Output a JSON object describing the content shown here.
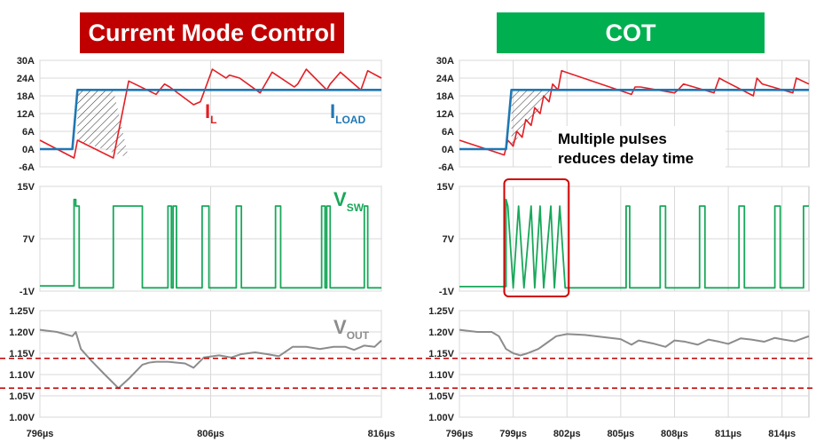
{
  "colors": {
    "left_title_bg": "#c00000",
    "right_title_bg": "#00b050",
    "il": "#e31e24",
    "iload": "#1f77b4",
    "vsw": "#18a85a",
    "vout": "#8c8c8c",
    "limit_line": "#c00000",
    "highlight_box": "#d00000",
    "grid": "#d9d9d9",
    "hatch": "#333333"
  },
  "panels": {
    "left": {
      "title": "Current Mode Control"
    },
    "right": {
      "title": "COT",
      "annotation_line1": "Multiple pulses",
      "annotation_line2": "reduces delay time"
    }
  },
  "labels": {
    "il_main": "I",
    "il_sub": "L",
    "iload_main": "I",
    "iload_sub": "LOAD",
    "vsw_main": "V",
    "vsw_sub": "SW",
    "vout_main": "V",
    "vout_sub": "OUT"
  },
  "chart_data": [
    {
      "type": "line",
      "panel": "left",
      "title": "Current Mode Control",
      "xlim": [
        796,
        816
      ],
      "x_ticks": [
        "796µs",
        "806µs",
        "816µs"
      ],
      "x_tick_values": [
        796,
        806,
        816
      ],
      "subplots": [
        {
          "name": "current",
          "ylim": [
            -6,
            30
          ],
          "y_ticks": [
            "30A",
            "24A",
            "18A",
            "12A",
            "6A",
            "0A",
            "-6A"
          ],
          "y_tick_values": [
            30,
            24,
            18,
            12,
            6,
            0,
            -6
          ],
          "series": [
            {
              "name": "IL",
              "x": [
                796,
                798,
                798.2,
                800.3,
                801.2,
                802.8,
                803.3,
                803.6,
                805.0,
                805.4,
                806.1,
                806.9,
                807.1,
                807.7,
                808.9,
                809.1,
                809.6,
                810.9,
                811.1,
                811.6,
                812.8,
                813.0,
                813.6,
                814.8,
                815.2,
                816
              ],
              "y": [
                3,
                -3,
                3,
                -3,
                23,
                18.5,
                22,
                21,
                15,
                16,
                27,
                24,
                25,
                24,
                19,
                21,
                26,
                21,
                22,
                27,
                20,
                22,
                26,
                20,
                26.5,
                24
              ]
            },
            {
              "name": "ILOAD",
              "x": [
                796,
                797.9,
                798.2,
                816
              ],
              "y": [
                0,
                0,
                20,
                20
              ]
            }
          ],
          "hatched_region": {
            "x": [
              798.2,
              800.3,
              801.2,
              798.2
            ],
            "y": [
              20,
              20,
              -3,
              3
            ]
          }
        },
        {
          "name": "vsw",
          "ylim": [
            -1,
            15
          ],
          "y_ticks": [
            "15V",
            "7V",
            "-1V"
          ],
          "y_tick_values": [
            15,
            7,
            -1
          ],
          "series": [
            {
              "name": "VSW",
              "x": [
                796,
                798.0,
                798.0,
                798.1,
                798.1,
                798.3,
                798.3,
                800.3,
                800.3,
                802.0,
                802.0,
                803.5,
                803.5,
                803.7,
                803.7,
                803.8,
                803.8,
                804.0,
                804.0,
                805.5,
                805.5,
                805.9,
                805.9,
                807.5,
                807.5,
                807.8,
                807.8,
                809.8,
                809.8,
                810.1,
                810.1,
                812.5,
                812.5,
                812.7,
                812.7,
                812.8,
                812.8,
                813.0,
                813.0,
                815.0,
                815.0,
                815.2,
                815.2,
                816
              ],
              "y": [
                -0.2,
                -0.2,
                13,
                13,
                12,
                12,
                -0.5,
                -0.5,
                12,
                12,
                -0.5,
                -0.5,
                12,
                12,
                -0.5,
                -0.5,
                12,
                12,
                -0.5,
                -0.5,
                12,
                12,
                -0.5,
                -0.5,
                12,
                12,
                -0.5,
                -0.5,
                12,
                12,
                -0.5,
                -0.5,
                12,
                12,
                -0.5,
                -0.5,
                12,
                12,
                -0.5,
                -0.5,
                12,
                12,
                -0.5,
                -0.5
              ]
            }
          ]
        },
        {
          "name": "vout",
          "ylim": [
            1.0,
            1.25
          ],
          "y_ticks": [
            "1.25V",
            "1.20V",
            "1.15V",
            "1.10V",
            "1.05V",
            "1.00V"
          ],
          "y_tick_values": [
            1.25,
            1.2,
            1.15,
            1.1,
            1.05,
            1.0
          ],
          "series": [
            {
              "name": "VOUT",
              "x": [
                796,
                797,
                797.9,
                798.1,
                798.4,
                799,
                799.8,
                800.6,
                801.2,
                802,
                802.4,
                802.8,
                803.5,
                804.5,
                805,
                805.6,
                806.5,
                807.2,
                807.8,
                808.6,
                809.3,
                810,
                810.8,
                811.6,
                812.4,
                813.2,
                813.9,
                814.4,
                815,
                815.6,
                816
              ],
              "y": [
                1.205,
                1.2,
                1.19,
                1.2,
                1.16,
                1.133,
                1.1,
                1.068,
                1.09,
                1.123,
                1.128,
                1.13,
                1.13,
                1.126,
                1.116,
                1.14,
                1.145,
                1.14,
                1.148,
                1.152,
                1.148,
                1.143,
                1.165,
                1.165,
                1.16,
                1.165,
                1.165,
                1.158,
                1.168,
                1.165,
                1.18
              ]
            }
          ],
          "limits": [
            1.138,
            1.068
          ]
        }
      ]
    },
    {
      "type": "line",
      "panel": "right",
      "title": "COT",
      "xlim": [
        796,
        815.5
      ],
      "x_ticks": [
        "796µs",
        "799µs",
        "802µs",
        "805µs",
        "808µs",
        "811µs",
        "814µs"
      ],
      "x_tick_values": [
        796,
        799,
        802,
        805,
        808,
        811,
        814
      ],
      "subplots": [
        {
          "name": "current",
          "ylim": [
            -6,
            30
          ],
          "y_ticks": [
            "30A",
            "24A",
            "18A",
            "12A",
            "6A",
            "0A",
            "-6A"
          ],
          "y_tick_values": [
            30,
            24,
            18,
            12,
            6,
            0,
            -6
          ],
          "series": [
            {
              "name": "IL",
              "x": [
                796,
                798.5,
                798.7,
                799.0,
                799.2,
                799.5,
                799.7,
                800.0,
                800.2,
                800.5,
                800.7,
                801.0,
                801.2,
                801.5,
                801.7,
                805.6,
                805.8,
                806.1,
                808.0,
                808.2,
                808.5,
                810.2,
                810.5,
                810.8,
                812.4,
                812.6,
                812.9,
                814.6,
                814.8,
                815.5
              ],
              "y": [
                3,
                -2,
                3,
                1,
                6,
                4,
                10,
                8,
                14,
                12,
                18,
                16,
                22,
                20,
                26.5,
                18.5,
                21,
                21,
                19,
                20,
                22,
                19,
                24,
                23,
                18,
                24,
                22,
                19,
                24,
                22
              ]
            },
            {
              "name": "ILOAD",
              "x": [
                796,
                798.6,
                798.9,
                815.5
              ],
              "y": [
                0,
                0,
                20,
                20
              ]
            }
          ],
          "hatched_region": {
            "x": [
              798.9,
              801.2,
              798.9
            ],
            "y": [
              20,
              20,
              1
            ]
          }
        },
        {
          "name": "vsw",
          "ylim": [
            -1,
            15
          ],
          "y_ticks": [
            "15V",
            "7V",
            "-1V"
          ],
          "y_tick_values": [
            15,
            7,
            -1
          ],
          "series": [
            {
              "name": "VSW",
              "x": [
                796,
                798.6,
                798.6,
                798.7,
                798.7,
                799.0,
                799.0,
                799.3,
                799.3,
                799.6,
                799.6,
                800.0,
                800.0,
                800.2,
                800.2,
                800.5,
                800.5,
                800.7,
                800.7,
                801.1,
                801.1,
                801.3,
                801.3,
                801.6,
                801.6,
                801.9,
                801.9,
                805.3,
                805.3,
                805.5,
                805.5,
                807.2,
                807.2,
                807.5,
                807.5,
                809.4,
                809.4,
                809.7,
                809.7,
                811.6,
                811.6,
                811.9,
                811.9,
                813.6,
                813.6,
                813.9,
                813.9,
                815.2,
                815.2,
                815.5
              ],
              "y": [
                -0.3,
                -0.3,
                13,
                12,
                12,
                -0.5,
                -0.5,
                12,
                12,
                -0.5,
                -0.5,
                12,
                12,
                -0.5,
                -0.5,
                12,
                12,
                -0.5,
                -0.5,
                12,
                12,
                -0.5,
                -0.5,
                12,
                12,
                -0.5,
                -0.5,
                -0.5,
                12,
                12,
                -0.5,
                -0.5,
                12,
                12,
                -0.5,
                -0.5,
                12,
                12,
                -0.5,
                -0.5,
                12,
                12,
                -0.5,
                -0.5,
                12,
                12,
                -0.5,
                -0.5,
                12,
                12
              ]
            }
          ],
          "highlight_x": [
            798.5,
            802.1
          ]
        },
        {
          "name": "vout",
          "ylim": [
            1.0,
            1.25
          ],
          "y_ticks": [
            "1.25V",
            "1.20V",
            "1.15V",
            "1.10V",
            "1.05V",
            "1.00V"
          ],
          "y_tick_values": [
            1.25,
            1.2,
            1.15,
            1.1,
            1.05,
            1.0
          ],
          "series": [
            {
              "name": "VOUT",
              "x": [
                796,
                797,
                797.8,
                798.2,
                798.6,
                799.0,
                799.4,
                799.8,
                800.4,
                800.9,
                801.4,
                802.0,
                803.0,
                804.0,
                805.0,
                805.6,
                806.0,
                806.8,
                807.5,
                808.0,
                808.6,
                809.3,
                809.9,
                810.5,
                811.0,
                811.7,
                812.3,
                813.0,
                813.6,
                814.1,
                814.7,
                815.5
              ],
              "y": [
                1.205,
                1.2,
                1.2,
                1.19,
                1.16,
                1.15,
                1.145,
                1.15,
                1.16,
                1.175,
                1.19,
                1.195,
                1.193,
                1.188,
                1.183,
                1.17,
                1.18,
                1.173,
                1.165,
                1.18,
                1.177,
                1.17,
                1.182,
                1.177,
                1.172,
                1.185,
                1.182,
                1.177,
                1.186,
                1.182,
                1.178,
                1.19
              ]
            }
          ],
          "limits": [
            1.138,
            1.068
          ]
        }
      ]
    }
  ]
}
